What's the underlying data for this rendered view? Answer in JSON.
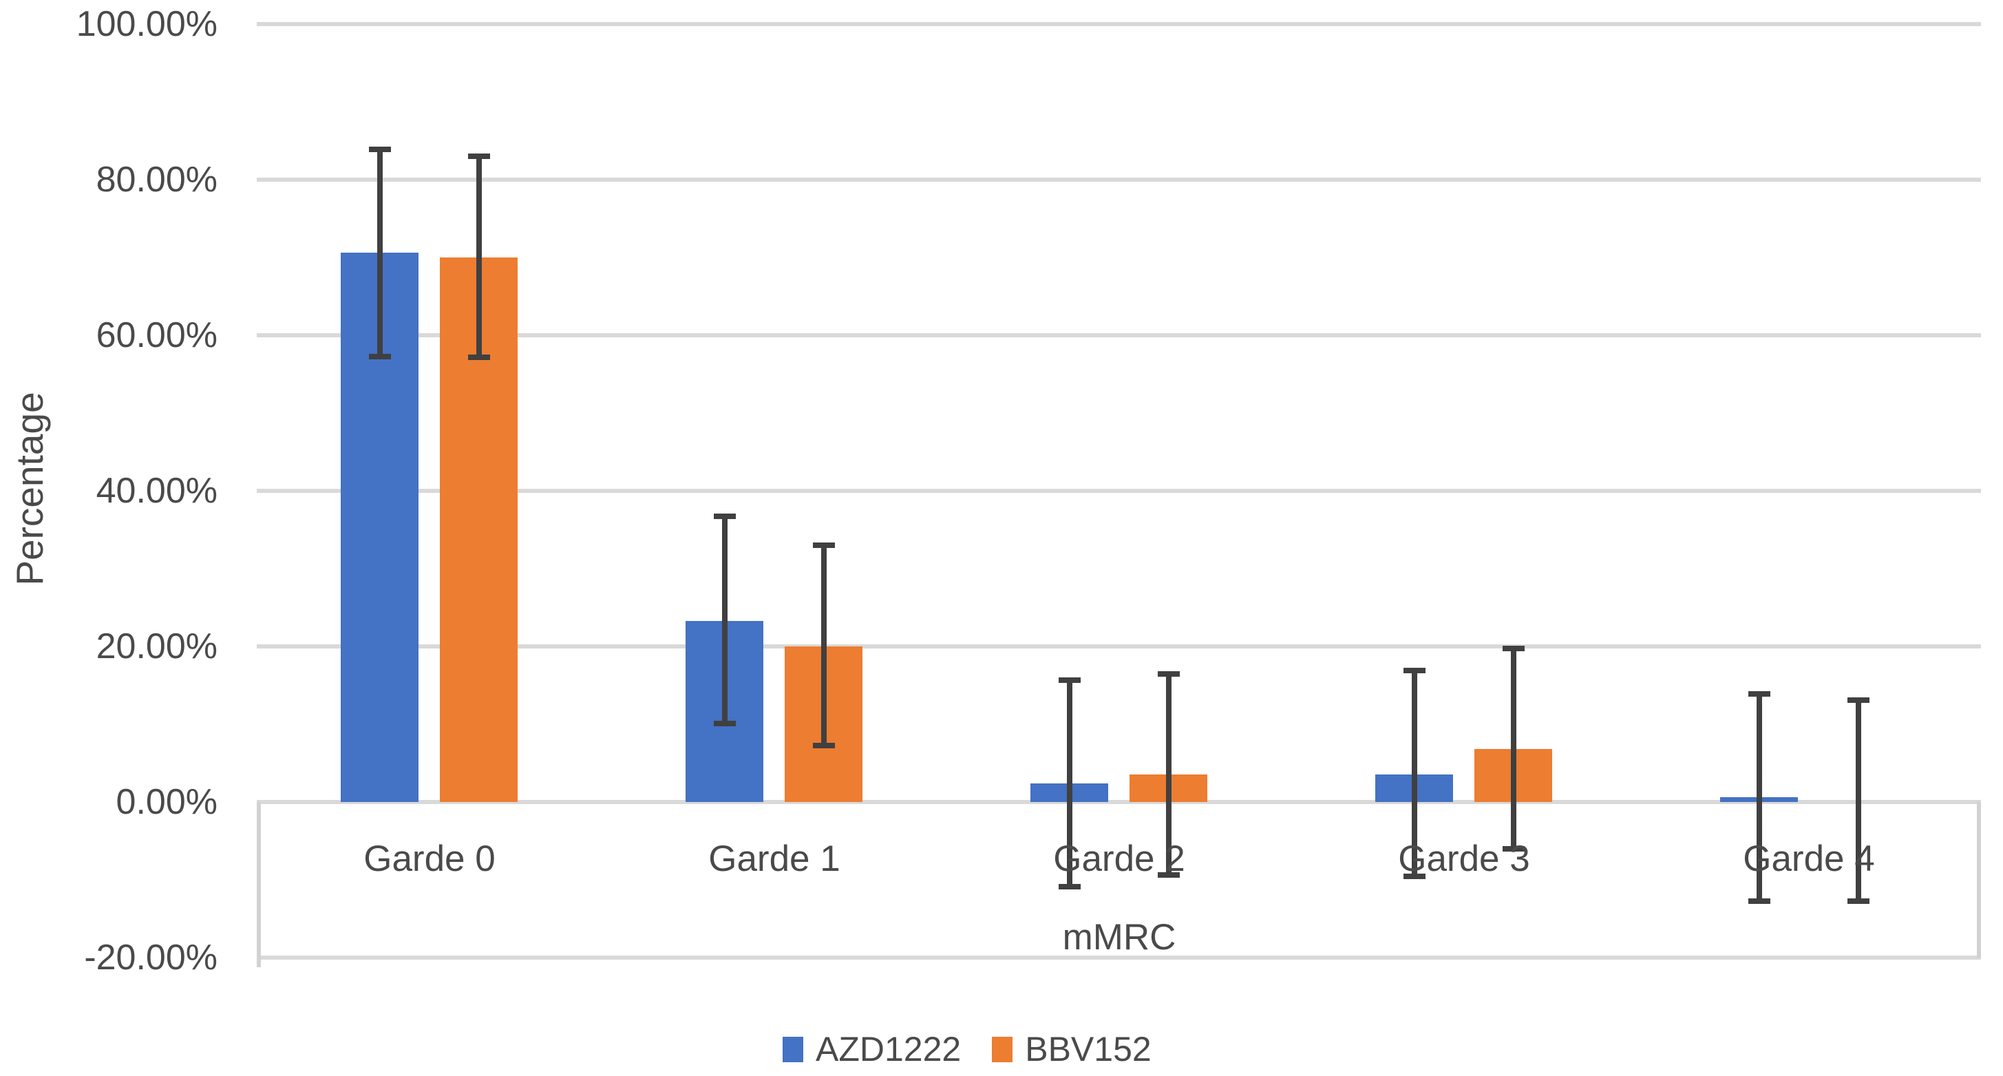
{
  "chart_data": {
    "type": "bar",
    "title": "",
    "categories": [
      "Garde 0",
      "Garde 1",
      "Garde 2",
      "Garde 3",
      "Garde 4"
    ],
    "series": [
      {
        "name": "AZD1222",
        "color": "#4472C4",
        "values": [
          70.6,
          23.3,
          2.4,
          3.5,
          0.6
        ],
        "error_low": [
          57.3,
          10.1,
          -10.9,
          -9.6,
          -12.7
        ],
        "error_high": [
          83.9,
          36.7,
          15.7,
          16.9,
          13.9
        ]
      },
      {
        "name": "BBV152",
        "color": "#ED7D31",
        "values": [
          70.0,
          20.0,
          3.5,
          6.8,
          0.0
        ],
        "error_low": [
          57.2,
          7.3,
          -9.4,
          -6.0,
          -12.7
        ],
        "error_high": [
          83.0,
          33.0,
          16.5,
          19.7,
          13.1
        ]
      }
    ],
    "xlabel": "mMRC",
    "ylabel": "Percentage",
    "ylim": [
      -20,
      100
    ],
    "ytick_step": 20,
    "ytick_labels": [
      "100.00%",
      "80.00%",
      "60.00%",
      "40.00%",
      "20.00%",
      "0.00%",
      "-20.00%"
    ],
    "grid": true,
    "legend_position": "bottom-center",
    "colors": {
      "gridline": "#D9D9D9",
      "axis_box": "#D2D2D2",
      "error_bar": "#404040",
      "text": "#4A4A4A"
    }
  }
}
